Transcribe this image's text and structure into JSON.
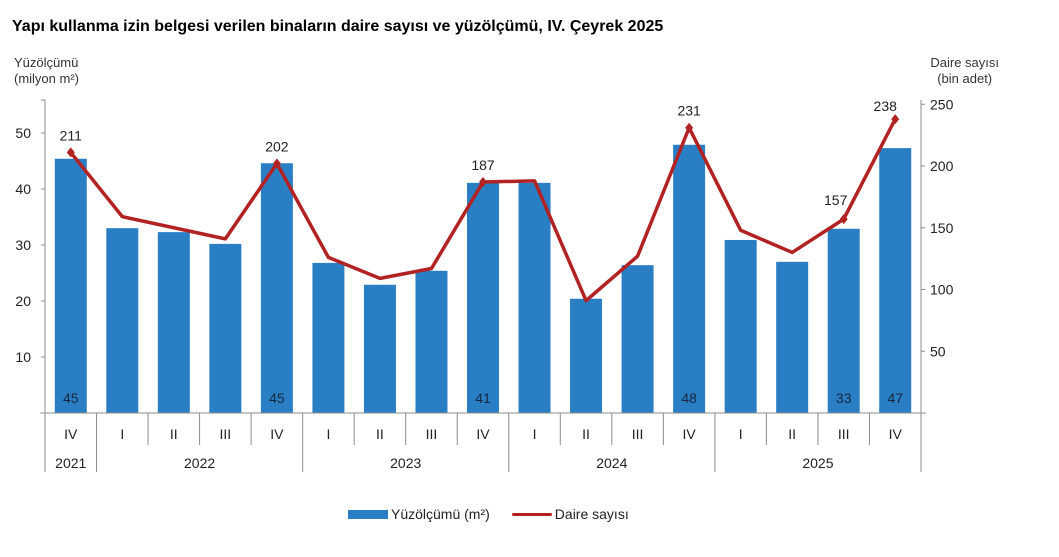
{
  "title": "Yapı kullanma izin belgesi verilen binaların daire sayısı ve yüzölçümü, IV. Çeyrek 2025",
  "left_axis_title": [
    "Yüzölçümü",
    "(milyon m²)"
  ],
  "right_axis_title": [
    "Daire sayısı",
    "(bin adet)"
  ],
  "legend": {
    "bar_label": "Yüzölçümü (m²)",
    "line_label": "Daire sayısı"
  },
  "colors": {
    "bar": "#2a7fc4",
    "line": "#b22222",
    "bar_label": "#17263f",
    "axis": "#8c8c8c"
  },
  "chart_data": {
    "type": "bar+line",
    "title": "Yapı kullanma izin belgesi verilen binaların daire sayısı ve yüzölçümü, IV. Çeyrek 2025",
    "categories": [
      "2021 IV",
      "2022 I",
      "2022 II",
      "2022 III",
      "2022 IV",
      "2023 I",
      "2023 II",
      "2023 III",
      "2023 IV",
      "2024 I",
      "2024 II",
      "2024 III",
      "2024 IV",
      "2025 I",
      "2025 II",
      "2025 III",
      "2025 IV"
    ],
    "quarters": [
      "IV",
      "I",
      "II",
      "III",
      "IV",
      "I",
      "II",
      "III",
      "IV",
      "I",
      "II",
      "III",
      "IV",
      "I",
      "II",
      "III",
      "IV"
    ],
    "years": [
      {
        "label": "2021",
        "start": 0,
        "span": 1
      },
      {
        "label": "2022",
        "start": 1,
        "span": 4
      },
      {
        "label": "2023",
        "start": 5,
        "span": 4
      },
      {
        "label": "2024",
        "start": 9,
        "span": 4
      },
      {
        "label": "2025",
        "start": 13,
        "span": 4
      }
    ],
    "series": [
      {
        "name": "Yüzölçümü (m²)",
        "type": "bar",
        "axis": "left",
        "values": [
          45.4,
          33.0,
          32.3,
          30.2,
          44.6,
          26.8,
          22.9,
          25.4,
          41.1,
          41.1,
          20.4,
          26.4,
          47.9,
          30.9,
          27.0,
          32.9,
          47.3
        ],
        "labels": {
          "0": "45",
          "4": "45",
          "8": "41",
          "12": "48",
          "15": "33",
          "16": "47"
        }
      },
      {
        "name": "Daire sayısı",
        "type": "line",
        "axis": "right",
        "values": [
          211,
          159,
          150,
          141,
          202,
          126,
          109,
          117,
          187,
          188,
          91,
          127,
          231,
          148,
          130,
          157,
          238
        ],
        "labels": {
          "0": "211",
          "4": "202",
          "8": "187",
          "12": "231",
          "15": "157",
          "16": "238"
        }
      }
    ],
    "left_axis": {
      "label": "Yüzölçümü (milyon m²)",
      "ticks": [
        10,
        20,
        30,
        40,
        50
      ],
      "range": [
        0,
        55
      ]
    },
    "right_axis": {
      "label": "Daire sayısı (bin adet)",
      "ticks": [
        50,
        100,
        150,
        200,
        250
      ],
      "range": [
        0,
        250
      ]
    },
    "grid": false,
    "legend_position": "bottom"
  }
}
